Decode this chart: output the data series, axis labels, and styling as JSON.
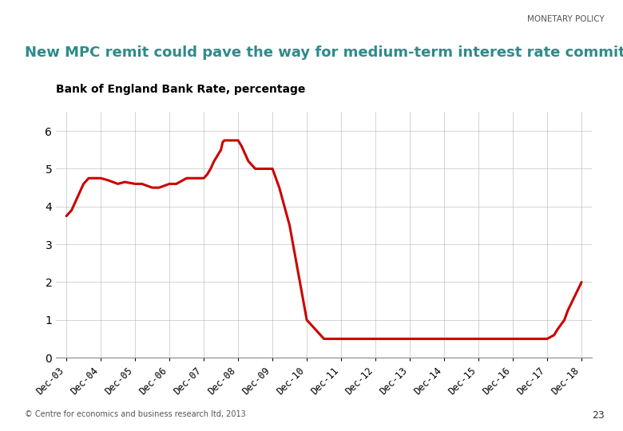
{
  "title": "New MPC remit could pave the way for medium-term interest rate commitments",
  "category_label": "MONETARY POLICY",
  "subtitle": "Bank of England Bank Rate, percentage",
  "footer": "© Centre for economics and business research ltd, 2013",
  "page_number": "23",
  "line_color": "#cc0000",
  "line_width": 2.2,
  "background_color": "#ffffff",
  "grid_color": "#aaaaaa",
  "title_color": "#2e8b8b",
  "teal_line_color": "#2e8b8b",
  "ylim": [
    0,
    6.5
  ],
  "yticks": [
    0,
    1,
    2,
    3,
    4,
    5,
    6
  ],
  "x_labels": [
    "Dec-03",
    "Dec-04",
    "Dec-05",
    "Dec-06",
    "Dec-07",
    "Dec-08",
    "Dec-09",
    "Dec-10",
    "Dec-11",
    "Dec-12",
    "Dec-13",
    "Dec-14",
    "Dec-15",
    "Dec-16",
    "Dec-17",
    "Dec-18"
  ],
  "x_data": [
    0.0,
    0.15,
    0.35,
    0.5,
    0.65,
    0.85,
    1.0,
    1.2,
    1.5,
    1.7,
    2.0,
    2.2,
    2.5,
    2.7,
    3.0,
    3.2,
    3.5,
    3.7,
    4.0,
    4.1,
    4.2,
    4.3,
    4.5,
    4.55,
    4.6,
    5.0,
    5.1,
    5.2,
    5.3,
    5.5,
    6.0,
    6.2,
    6.5,
    6.8,
    7.0,
    7.5,
    8.0,
    8.5,
    9.0,
    9.5,
    10.0,
    10.5,
    11.0,
    11.5,
    12.0,
    12.2,
    12.5,
    12.7,
    12.8,
    13.0,
    13.2,
    13.5,
    13.7,
    14.0,
    14.2,
    14.3,
    14.5,
    14.6,
    15.0
  ],
  "y_data": [
    3.75,
    3.9,
    4.3,
    4.6,
    4.75,
    4.75,
    4.75,
    4.7,
    4.6,
    4.65,
    4.6,
    4.6,
    4.5,
    4.5,
    4.6,
    4.6,
    4.75,
    4.75,
    4.75,
    4.85,
    5.0,
    5.2,
    5.5,
    5.7,
    5.75,
    5.75,
    5.6,
    5.4,
    5.2,
    5.0,
    5.0,
    4.5,
    3.5,
    2.0,
    1.0,
    0.5,
    0.5,
    0.5,
    0.5,
    0.5,
    0.5,
    0.5,
    0.5,
    0.5,
    0.5,
    0.5,
    0.5,
    0.5,
    0.5,
    0.5,
    0.5,
    0.5,
    0.5,
    0.5,
    0.6,
    0.75,
    1.0,
    1.25,
    2.0
  ]
}
